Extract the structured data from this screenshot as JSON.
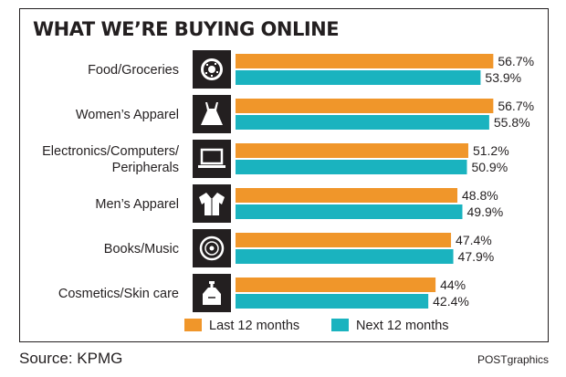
{
  "chart_data": {
    "type": "bar",
    "orientation": "horizontal",
    "title": "WHAT WE’RE BUYING ONLINE",
    "categories": [
      {
        "label": "Food/Groceries",
        "icon": "donut-icon"
      },
      {
        "label": "Women’s Apparel",
        "icon": "dress-icon"
      },
      {
        "label": "Electronics/Computers/\nPeripherals",
        "icon": "laptop-icon"
      },
      {
        "label": "Men’s Apparel",
        "icon": "shirt-icon"
      },
      {
        "label": "Books/Music",
        "icon": "disc-icon"
      },
      {
        "label": "Cosmetics/Skin care",
        "icon": "lotion-bottle-icon"
      }
    ],
    "series": [
      {
        "name": "Last 12 months",
        "color": "#f0962a",
        "values": [
          56.7,
          56.7,
          51.2,
          48.8,
          47.4,
          44
        ],
        "labels": [
          "56.7%",
          "56.7%",
          "51.2%",
          "48.8%",
          "47.4%",
          "44%"
        ]
      },
      {
        "name": "Next 12 months",
        "color": "#1ab3bf",
        "values": [
          53.9,
          55.8,
          50.9,
          49.9,
          47.9,
          42.4
        ],
        "labels": [
          "53.9%",
          "55.8%",
          "50.9%",
          "49.9%",
          "47.9%",
          "42.4%"
        ]
      }
    ],
    "xlim": [
      0,
      60
    ],
    "grid": false,
    "legend_position": "bottom"
  },
  "source": "Source: KPMG",
  "credit": "POSTgraphics"
}
